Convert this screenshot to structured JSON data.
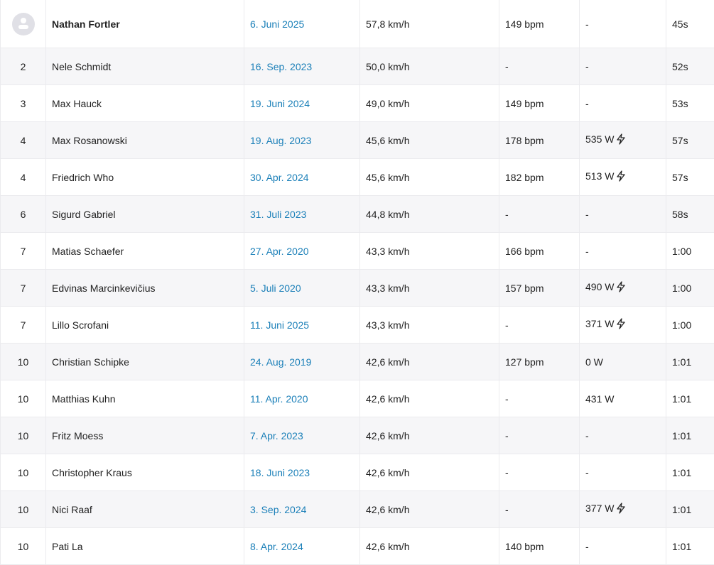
{
  "rows": [
    {
      "rank": "",
      "avatar": true,
      "name": "Nathan Fortler",
      "date": "6. Juni 2025",
      "speed": "57,8 km/h",
      "hr": "149 bpm",
      "power": "-",
      "bolt": false,
      "time": "45s"
    },
    {
      "rank": "2",
      "name": "Nele Schmidt",
      "date": "16. Sep. 2023",
      "speed": "50,0 km/h",
      "hr": "-",
      "power": "-",
      "bolt": false,
      "time": "52s"
    },
    {
      "rank": "3",
      "name": "Max Hauck",
      "date": "19. Juni 2024",
      "speed": "49,0 km/h",
      "hr": "149 bpm",
      "power": "-",
      "bolt": false,
      "time": "53s"
    },
    {
      "rank": "4",
      "name": "Max Rosanowski",
      "date": "19. Aug. 2023",
      "speed": "45,6 km/h",
      "hr": "178 bpm",
      "power": "535 W",
      "bolt": true,
      "time": "57s"
    },
    {
      "rank": "4",
      "name": "Friedrich Who",
      "date": "30. Apr. 2024",
      "speed": "45,6 km/h",
      "hr": "182 bpm",
      "power": "513 W",
      "bolt": true,
      "time": "57s"
    },
    {
      "rank": "6",
      "name": "Sigurd Gabriel",
      "date": "31. Juli 2023",
      "speed": "44,8 km/h",
      "hr": "-",
      "power": "-",
      "bolt": false,
      "time": "58s"
    },
    {
      "rank": "7",
      "name": "Matias Schaefer",
      "date": "27. Apr. 2020",
      "speed": "43,3 km/h",
      "hr": "166 bpm",
      "power": "-",
      "bolt": false,
      "time": "1:00"
    },
    {
      "rank": "7",
      "name": "Edvinas Marcinkevičius",
      "date": "5. Juli 2020",
      "speed": "43,3 km/h",
      "hr": "157 bpm",
      "power": "490 W",
      "bolt": true,
      "time": "1:00"
    },
    {
      "rank": "7",
      "name": "Lillo Scrofani",
      "date": "11. Juni 2025",
      "speed": "43,3 km/h",
      "hr": "-",
      "power": "371 W",
      "bolt": true,
      "time": "1:00"
    },
    {
      "rank": "10",
      "name": "Christian Schipke",
      "date": "24. Aug. 2019",
      "speed": "42,6 km/h",
      "hr": "127 bpm",
      "power": "0 W",
      "bolt": false,
      "time": "1:01"
    },
    {
      "rank": "10",
      "name": "Matthias Kuhn",
      "date": "11. Apr. 2020",
      "speed": "42,6 km/h",
      "hr": "-",
      "power": "431 W",
      "bolt": false,
      "time": "1:01"
    },
    {
      "rank": "10",
      "name": "Fritz Moess",
      "date": "7. Apr. 2023",
      "speed": "42,6 km/h",
      "hr": "-",
      "power": "-",
      "bolt": false,
      "time": "1:01"
    },
    {
      "rank": "10",
      "name": "Christopher Kraus",
      "date": "18. Juni 2023",
      "speed": "42,6 km/h",
      "hr": "-",
      "power": "-",
      "bolt": false,
      "time": "1:01"
    },
    {
      "rank": "10",
      "name": "Nici Raaf",
      "date": "3. Sep. 2024",
      "speed": "42,6 km/h",
      "hr": "-",
      "power": "377 W",
      "bolt": true,
      "time": "1:01"
    },
    {
      "rank": "10",
      "name": "Pati La",
      "date": "8. Apr. 2024",
      "speed": "42,6 km/h",
      "hr": "140 bpm",
      "power": "-",
      "bolt": false,
      "time": "1:01"
    }
  ]
}
